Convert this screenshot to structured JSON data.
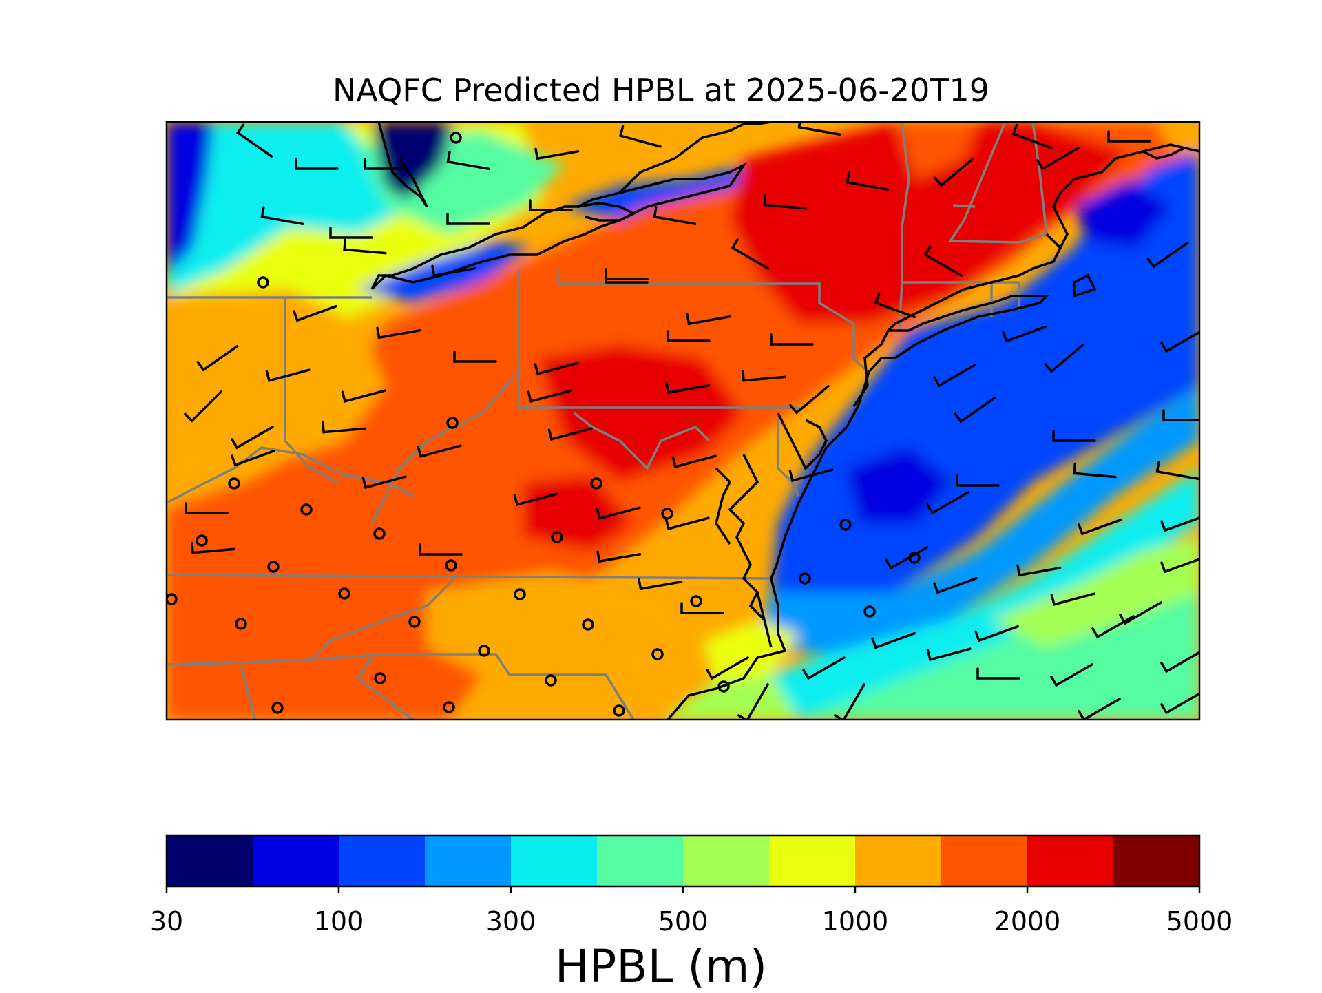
{
  "title": "NAQFC Predicted HPBL at 2025-06-20T19",
  "colorbar": {
    "label": "HPBL (m)",
    "tick_labels": [
      "30",
      "100",
      "300",
      "500",
      "1000",
      "2000",
      "5000"
    ],
    "colors": [
      "#00006f",
      "#0000e0",
      "#0044ff",
      "#0099ff",
      "#08eeee",
      "#55fca2",
      "#a4ff52",
      "#e9ff10",
      "#ffaa00",
      "#ff5500",
      "#e80000",
      "#7f0000"
    ]
  },
  "map": {
    "field": "HPBL",
    "projection": "Lambert conformal",
    "overlays": [
      "state-borders",
      "coastlines",
      "wind-barbs",
      "station-circles"
    ]
  }
}
